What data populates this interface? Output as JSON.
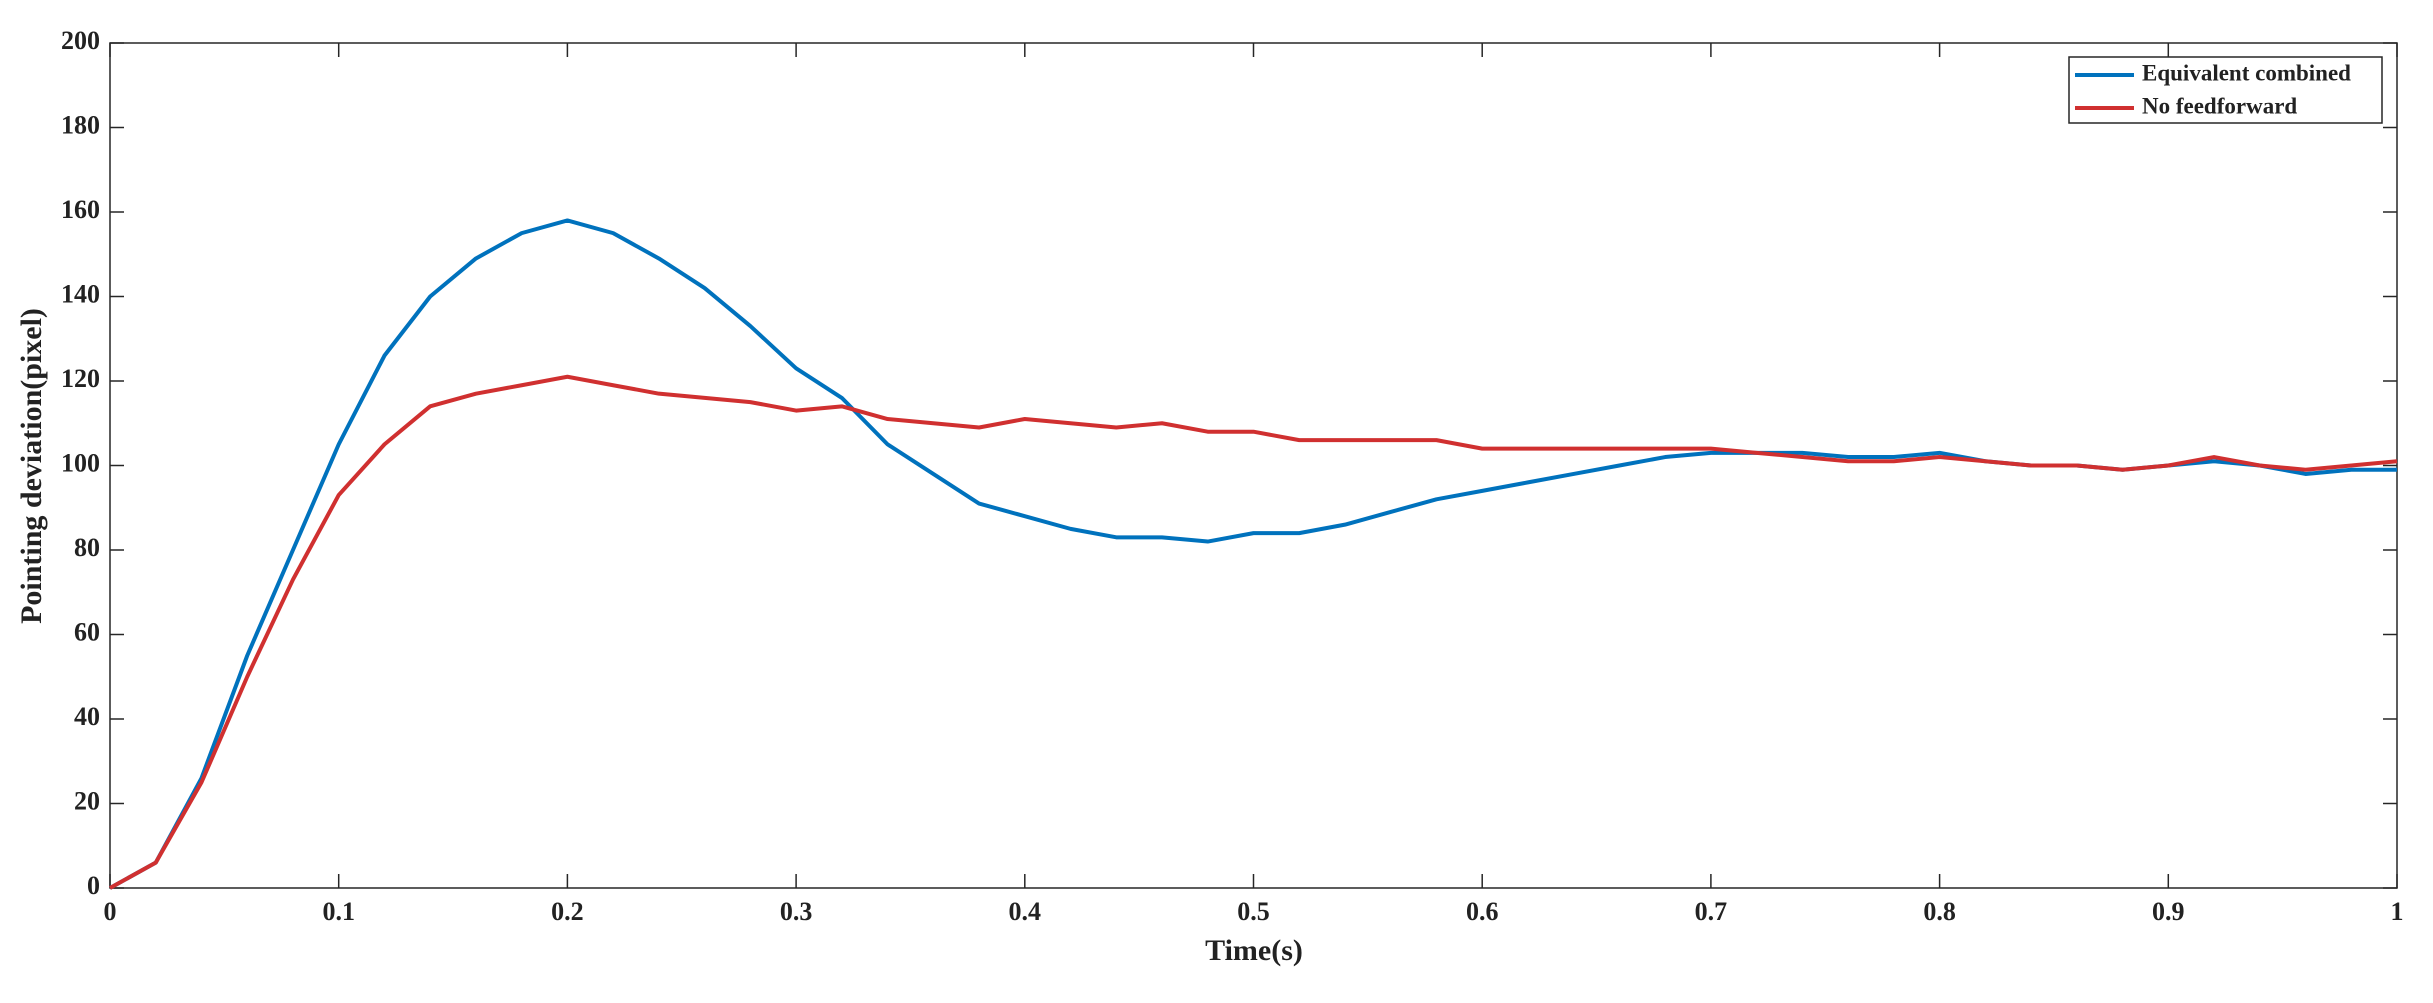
{
  "chart_data": {
    "type": "line",
    "xlabel": "Time(s)",
    "ylabel": "Pointing deviation(pixel)",
    "x": [
      0,
      0.02,
      0.04,
      0.06,
      0.08,
      0.1,
      0.12,
      0.14,
      0.16,
      0.18,
      0.2,
      0.22,
      0.24,
      0.26,
      0.28,
      0.3,
      0.32,
      0.34,
      0.36,
      0.38,
      0.4,
      0.42,
      0.44,
      0.46,
      0.48,
      0.5,
      0.52,
      0.54,
      0.56,
      0.58,
      0.6,
      0.62,
      0.64,
      0.66,
      0.68,
      0.7,
      0.72,
      0.74,
      0.76,
      0.78,
      0.8,
      0.82,
      0.84,
      0.86,
      0.88,
      0.9,
      0.92,
      0.94,
      0.96,
      0.98,
      1
    ],
    "series": [
      {
        "name": "Equivalent combined",
        "color": "#0072bd",
        "values": [
          0,
          6,
          26,
          55,
          80,
          105,
          126,
          140,
          149,
          155,
          158,
          155,
          149,
          142,
          133,
          123,
          116,
          105,
          98,
          91,
          88,
          85,
          83,
          83,
          82,
          84,
          84,
          86,
          89,
          92,
          94,
          96,
          98,
          100,
          102,
          103,
          103,
          103,
          102,
          102,
          103,
          101,
          100,
          100,
          99,
          100,
          101,
          100,
          98,
          99,
          99
        ]
      },
      {
        "name": "No feedforward",
        "color": "#d03030",
        "values": [
          0,
          6,
          25,
          50,
          73,
          93,
          105,
          114,
          117,
          119,
          121,
          119,
          117,
          116,
          115,
          113,
          114,
          111,
          110,
          109,
          111,
          110,
          109,
          110,
          108,
          108,
          106,
          106,
          106,
          106,
          104,
          104,
          104,
          104,
          104,
          104,
          103,
          102,
          101,
          101,
          102,
          101,
          100,
          100,
          99,
          100,
          102,
          100,
          99,
          100,
          101
        ]
      }
    ],
    "xlim": [
      0,
      1
    ],
    "xticks": [
      0,
      0.1,
      0.2,
      0.3,
      0.4,
      0.5,
      0.6,
      0.7,
      0.8,
      0.9,
      1
    ],
    "ylim": [
      0,
      200
    ],
    "yticks": [
      0,
      20,
      40,
      60,
      80,
      100,
      120,
      140,
      160,
      180,
      200
    ],
    "grid": false,
    "legend": "upper right"
  }
}
